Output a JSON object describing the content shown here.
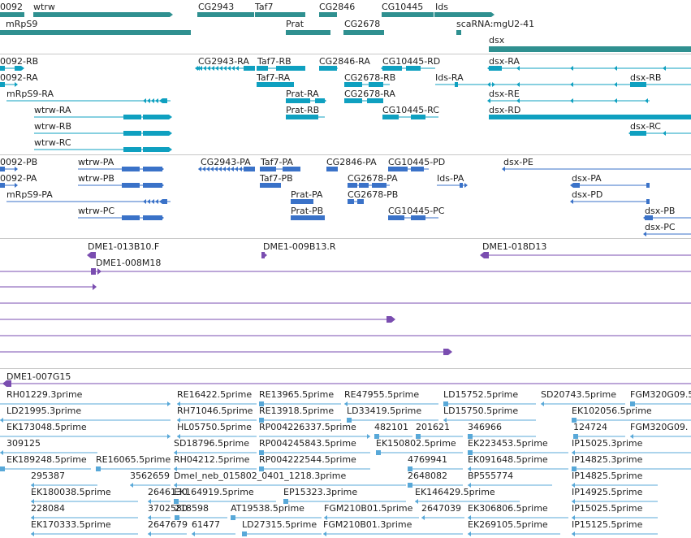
{
  "colors": {
    "gene": "#2f9090",
    "transcript_rb": "#0fa0c0",
    "transcript_pb": "#3a72c8",
    "clone": "#7a4db0",
    "est": "#58a8d8",
    "divider": "#c8c8c8"
  },
  "tracks": {
    "genes": {
      "items": [
        {
          "label": "0092"
        },
        {
          "label": "wtrw"
        },
        {
          "label": "CG2943"
        },
        {
          "label": "Taf7"
        },
        {
          "label": "CG2846"
        },
        {
          "label": "CG10445"
        },
        {
          "label": "Ids"
        },
        {
          "label": "mRpS9"
        },
        {
          "label": "Prat"
        },
        {
          "label": "CG2678"
        },
        {
          "label": "scaRNA:mgU2-41"
        },
        {
          "label": "dsx"
        }
      ]
    },
    "transcripts_rna": {
      "items": [
        {
          "label": "0092-RB"
        },
        {
          "label": "CG2943-RA"
        },
        {
          "label": "Taf7-RB"
        },
        {
          "label": "CG2846-RA"
        },
        {
          "label": "CG10445-RD"
        },
        {
          "label": "dsx-RA"
        },
        {
          "label": "0092-RA"
        },
        {
          "label": "Taf7-RA"
        },
        {
          "label": "CG2678-RB"
        },
        {
          "label": "Ids-RA"
        },
        {
          "label": "dsx-RB"
        },
        {
          "label": "mRpS9-RA"
        },
        {
          "label": "Prat-RA"
        },
        {
          "label": "CG2678-RA"
        },
        {
          "label": "dsx-RE"
        },
        {
          "label": "wtrw-RA"
        },
        {
          "label": "Prat-RB"
        },
        {
          "label": "CG10445-RC"
        },
        {
          "label": "dsx-RD"
        },
        {
          "label": "wtrw-RB"
        },
        {
          "label": "dsx-RC"
        },
        {
          "label": "wtrw-RC"
        }
      ]
    },
    "transcripts_protein": {
      "items": [
        {
          "label": "0092-PB"
        },
        {
          "label": "wtrw-PA"
        },
        {
          "label": "CG2943-PA"
        },
        {
          "label": "Taf7-PA"
        },
        {
          "label": "CG2846-PA"
        },
        {
          "label": "CG10445-PD"
        },
        {
          "label": "dsx-PE"
        },
        {
          "label": "0092-PA"
        },
        {
          "label": "wtrw-PB"
        },
        {
          "label": "Taf7-PB"
        },
        {
          "label": "CG2678-PA"
        },
        {
          "label": "Ids-PA"
        },
        {
          "label": "dsx-PA"
        },
        {
          "label": "mRpS9-PA"
        },
        {
          "label": "Prat-PA"
        },
        {
          "label": "CG2678-PB"
        },
        {
          "label": "dsx-PD"
        },
        {
          "label": "wtrw-PC"
        },
        {
          "label": "Prat-PB"
        },
        {
          "label": "CG10445-PC"
        },
        {
          "label": "dsx-PB"
        },
        {
          "label": "dsx-PC"
        }
      ]
    },
    "clones": {
      "items": [
        {
          "label": "DME1-013B10.F"
        },
        {
          "label": "DME1-009B13.R"
        },
        {
          "label": "DME1-018D13"
        },
        {
          "label": "DME1-008M18"
        },
        {
          "label": "DME1-007G15"
        }
      ]
    },
    "ests": {
      "items": [
        {
          "label": "RH01229.3prime"
        },
        {
          "label": "RE16422.5prime"
        },
        {
          "label": "RE13965.5prime"
        },
        {
          "label": "RE47955.5prime"
        },
        {
          "label": "LD15752.5prime"
        },
        {
          "label": "SD20743.5prime"
        },
        {
          "label": "FGM320G09.5"
        },
        {
          "label": "LD21995.3prime"
        },
        {
          "label": "RH71046.5prime"
        },
        {
          "label": "RE13918.5prime"
        },
        {
          "label": "LD33419.5prime"
        },
        {
          "label": "LD15750.5prime"
        },
        {
          "label": "EK102056.5prime"
        },
        {
          "label": "EK173048.5prime"
        },
        {
          "label": "HL05750.5prime"
        },
        {
          "label": "RP004226337.5prime"
        },
        {
          "label": "482101"
        },
        {
          "label": "201621"
        },
        {
          "label": "346966"
        },
        {
          "label": "124724"
        },
        {
          "label": "FGM320G09."
        },
        {
          "label": "309125"
        },
        {
          "label": "SD18796.5prime"
        },
        {
          "label": "RP004245843.5prime"
        },
        {
          "label": "EK150802.5prime"
        },
        {
          "label": "EK223453.5prime"
        },
        {
          "label": "IP15025.3prime"
        },
        {
          "label": "EK189248.5prime"
        },
        {
          "label": "RE16065.5prime"
        },
        {
          "label": "RH04212.5prime"
        },
        {
          "label": "RP004222544.5prime"
        },
        {
          "label": "4769941"
        },
        {
          "label": "EK091648.5prime"
        },
        {
          "label": "IP14825.3prime"
        },
        {
          "label": "295387"
        },
        {
          "label": "3562659"
        },
        {
          "label": "Dmel_neb_015802_0401_1218.3prime"
        },
        {
          "label": "2648082"
        },
        {
          "label": "BP555774"
        },
        {
          "label": "IP14825.5prime"
        },
        {
          "label": "EK180038.5prime"
        },
        {
          "label": "2646130"
        },
        {
          "label": "EK164919.5prime"
        },
        {
          "label": "EP15323.3prime"
        },
        {
          "label": "EK146429.5prime"
        },
        {
          "label": "IP14925.5prime"
        },
        {
          "label": "228084"
        },
        {
          "label": "3702580"
        },
        {
          "label": "218598"
        },
        {
          "label": "AT19538.5prime"
        },
        {
          "label": "FGM210B01.5prime"
        },
        {
          "label": "2647039"
        },
        {
          "label": "EK306806.5prime"
        },
        {
          "label": "IP15025.5prime"
        },
        {
          "label": "EK170333.5prime"
        },
        {
          "label": "2647679"
        },
        {
          "label": "61477"
        },
        {
          "label": "LD27315.5prime"
        },
        {
          "label": "FGM210B01.3prime"
        },
        {
          "label": "EK269105.5prime"
        },
        {
          "label": "IP15125.5prime"
        }
      ]
    }
  }
}
